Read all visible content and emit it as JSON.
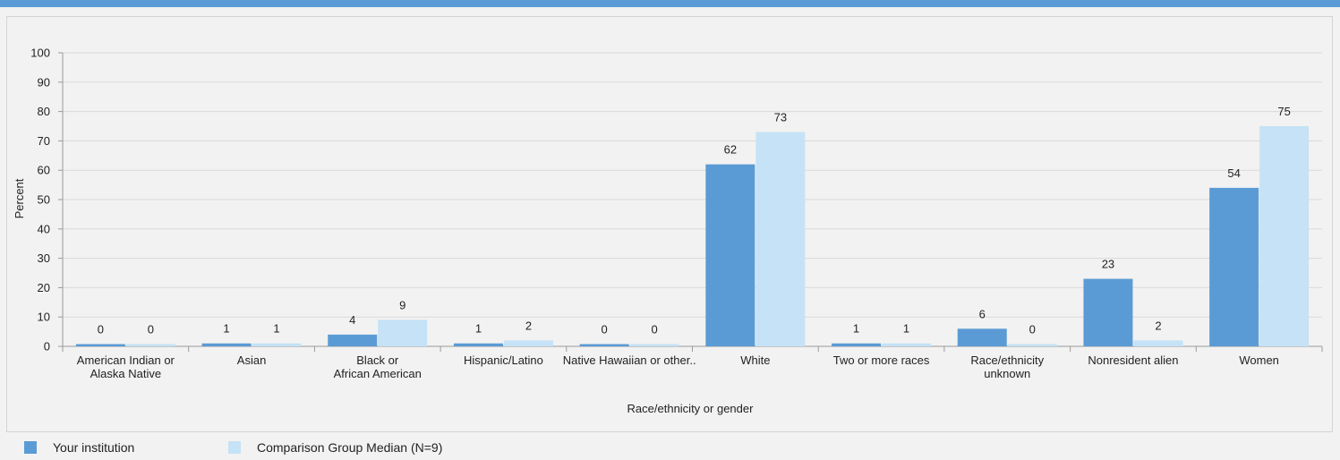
{
  "chart_data": {
    "type": "bar",
    "categories": [
      [
        "American Indian or",
        "Alaska Native"
      ],
      [
        "Asian"
      ],
      [
        "Black or",
        "African American"
      ],
      [
        "Hispanic/Latino"
      ],
      [
        "Native Hawaiian  or other.."
      ],
      [
        "White"
      ],
      [
        "Two or more races"
      ],
      [
        "Race/ethnicity",
        "unknown"
      ],
      [
        "Nonresident alien"
      ],
      [
        "Women"
      ]
    ],
    "series": [
      {
        "name": "Your institution",
        "color": "#5b9bd5",
        "values": [
          0,
          1,
          4,
          1,
          0,
          62,
          1,
          6,
          23,
          54
        ]
      },
      {
        "name": "Comparison Group Median (N=9)",
        "color": "#c5e2f6",
        "values": [
          0,
          1,
          9,
          2,
          0,
          73,
          1,
          0,
          2,
          75
        ]
      }
    ],
    "xlabel": "Race/ethnicity or gender",
    "ylabel": "Percent",
    "ylim": [
      0,
      100
    ],
    "yticks": [
      0,
      10,
      20,
      30,
      40,
      50,
      60,
      70,
      80,
      90,
      100
    ],
    "grid": true,
    "legend_position": "bottom-left"
  }
}
